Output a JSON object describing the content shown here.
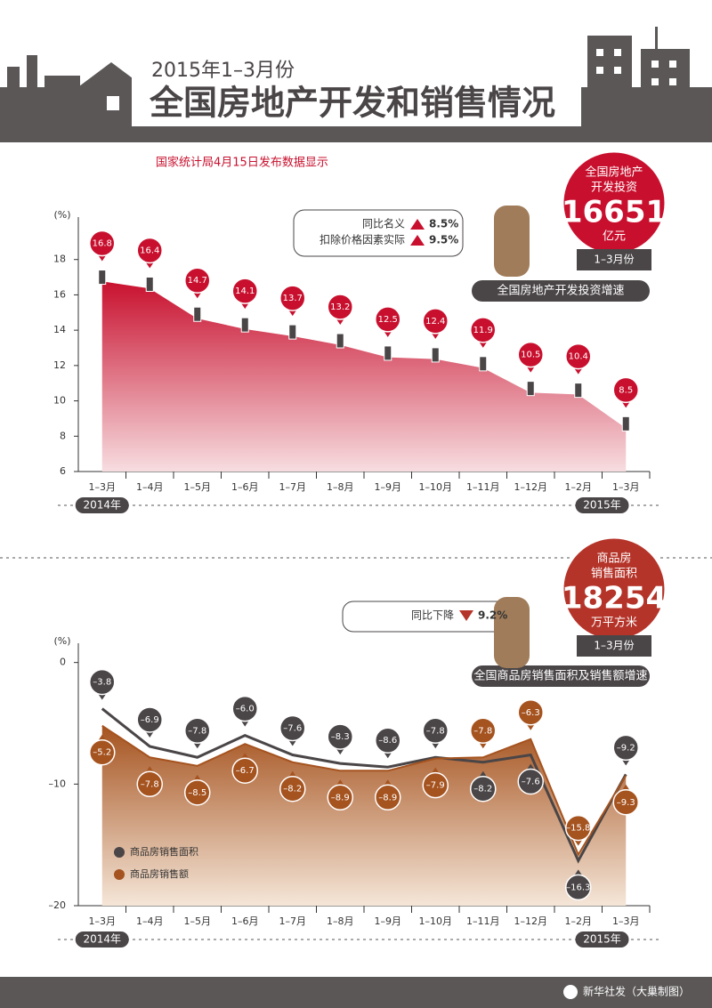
{
  "header": {
    "subtitle": "2015年1–3月份",
    "title": "全国房地产开发和销售情况",
    "source": "国家统计局4月15日发布数据显示",
    "footer": "新华社发（大巢制图）"
  },
  "chart_data": [
    {
      "type": "area",
      "title": "全国房地产开发投资增速",
      "ylabel": "(%)",
      "categories": [
        "1–3月",
        "1–4月",
        "1–5月",
        "1–6月",
        "1–7月",
        "1–8月",
        "1–9月",
        "1–10月",
        "1–11月",
        "1–12月",
        "1–2月",
        "1–3月"
      ],
      "values": [
        16.8,
        16.4,
        14.7,
        14.1,
        13.7,
        13.2,
        12.5,
        12.4,
        11.9,
        10.5,
        10.4,
        8.5
      ],
      "color": "#c8102e",
      "ylim": [
        6,
        20
      ],
      "yticks": [
        6,
        8,
        10,
        12,
        14,
        16,
        18
      ],
      "year_labels": [
        "2014年",
        "2015年"
      ],
      "callout": {
        "total_label": [
          "全国房地产",
          "开发投资"
        ],
        "total": 16651,
        "unit": "亿元",
        "period": "1–3月份",
        "notes": [
          {
            "label": "同比名义",
            "value": 8.5,
            "value_label": "8.5%"
          },
          {
            "label": "扣除价格因素实际",
            "value": 9.5,
            "value_label": "9.5%"
          }
        ]
      }
    },
    {
      "type": "line",
      "title": "全国商品房销售面积及销售额增速",
      "ylabel": "(%)",
      "categories": [
        "1–3月",
        "1–4月",
        "1–5月",
        "1–6月",
        "1–7月",
        "1–8月",
        "1–9月",
        "1–10月",
        "1–11月",
        "1–12月",
        "1–2月",
        "1–3月"
      ],
      "series": [
        {
          "name": "商品房销售面积",
          "color": "#4a4546",
          "values": [
            -3.8,
            -6.9,
            -7.8,
            -6.0,
            -7.6,
            -8.3,
            -8.6,
            -7.8,
            -8.2,
            -7.6,
            -16.3,
            -9.2
          ],
          "value_labels": [
            "–3.8",
            "–6.9",
            "–7.8",
            "–6.0",
            "–7.6",
            "–8.3",
            "–8.6",
            "–7.8",
            "–8.2",
            "–7.6",
            "–16.3",
            "–9.2"
          ]
        },
        {
          "name": "商品房销售额",
          "color": "#a5531f",
          "area": true,
          "values": [
            -5.2,
            -7.8,
            -8.5,
            -6.7,
            -8.2,
            -8.9,
            -8.9,
            -7.9,
            -7.8,
            -6.3,
            -15.8,
            -9.3
          ],
          "value_labels": [
            "–5.2",
            "–7.8",
            "–8.5",
            "–6.7",
            "–8.2",
            "–8.9",
            "–8.9",
            "–7.9",
            "–7.8",
            "–6.3",
            "–15.8",
            "–9.3"
          ]
        }
      ],
      "ylim": [
        -20,
        1
      ],
      "yticks": [
        {
          "value": 0,
          "label": "0"
        },
        {
          "value": -10,
          "label": "–10"
        },
        {
          "value": -20,
          "label": "–20"
        }
      ],
      "year_labels": [
        "2014年",
        "2015年"
      ],
      "callout": {
        "total_label": [
          "商品房",
          "销售面积"
        ],
        "total": 18254,
        "unit": "万平方米",
        "period": "1–3月份",
        "notes": [
          {
            "label": "同比下降",
            "value": 9.2,
            "value_label": "9.2%"
          }
        ]
      }
    }
  ]
}
